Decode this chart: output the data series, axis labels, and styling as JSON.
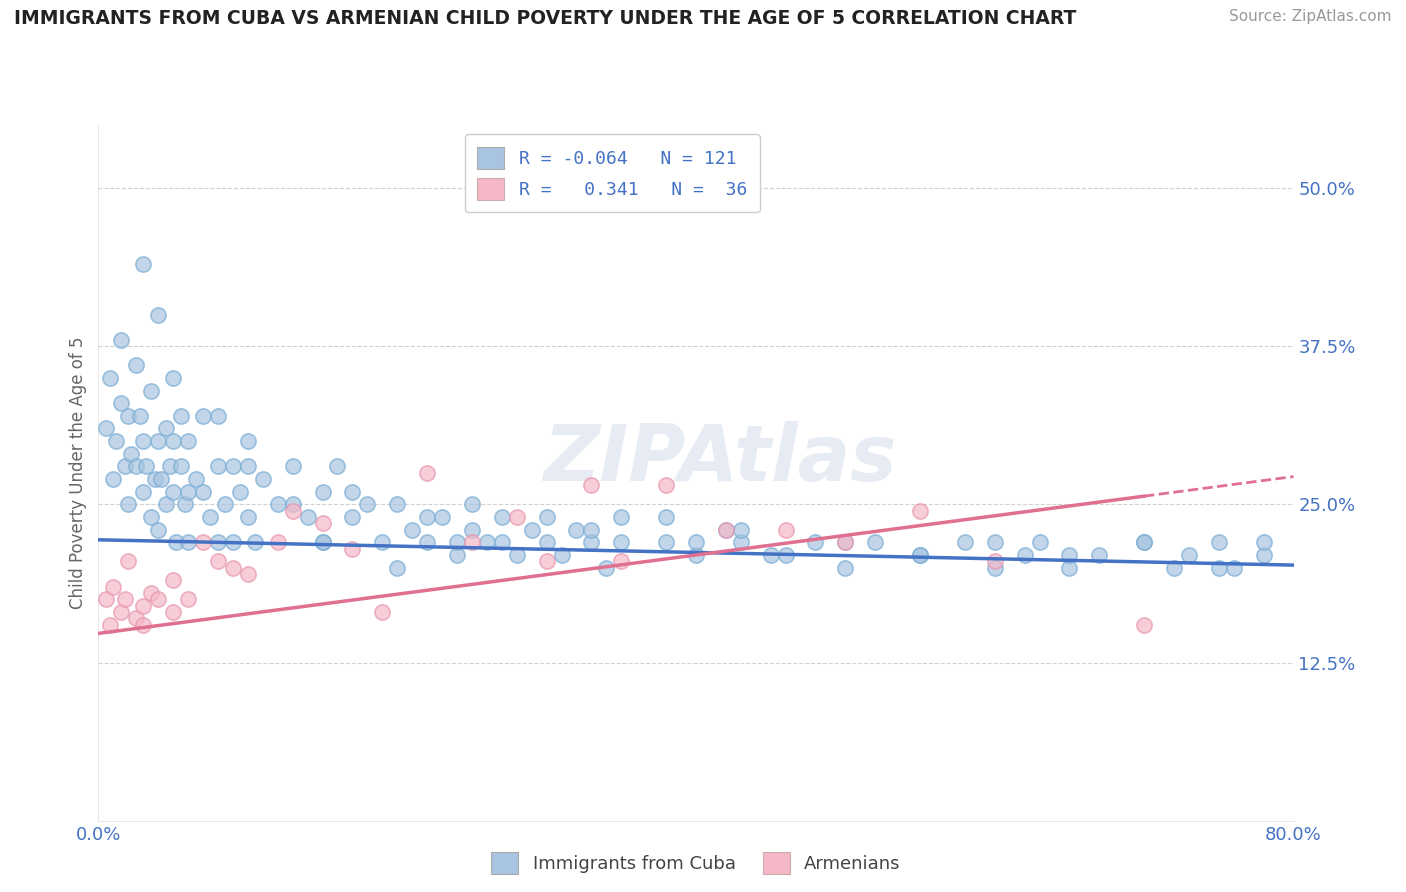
{
  "title": "IMMIGRANTS FROM CUBA VS ARMENIAN CHILD POVERTY UNDER THE AGE OF 5 CORRELATION CHART",
  "source": "Source: ZipAtlas.com",
  "ylabel": "Child Poverty Under the Age of 5",
  "xlim": [
    0.0,
    0.8
  ],
  "ylim": [
    0.0,
    0.55
  ],
  "xticks": [
    0.0,
    0.2,
    0.4,
    0.6,
    0.8
  ],
  "xticklabels_left": "0.0%",
  "xticklabels_right": "80.0%",
  "ytick_values": [
    0.125,
    0.25,
    0.375,
    0.5
  ],
  "ytick_labels": [
    "12.5%",
    "25.0%",
    "37.5%",
    "50.0%"
  ],
  "legend_labels": [
    "Immigrants from Cuba",
    "Armenians"
  ],
  "cuba_color": "#a8c4e0",
  "cuba_edge_color": "#7aadd4",
  "cuba_line_color": "#4472c4",
  "armenian_color": "#f4b8c8",
  "armenian_edge_color": "#e896b0",
  "armenian_line_color": "#e07090",
  "r_cuba": -0.064,
  "n_cuba": 121,
  "r_armenian": 0.341,
  "n_armenian": 36,
  "watermark": "ZIPAtlas",
  "background_color": "#ffffff",
  "grid_color": "#cccccc",
  "cuba_line_intercept": 0.222,
  "cuba_line_slope": -0.025,
  "armenian_line_intercept": 0.148,
  "armenian_line_slope": 0.155,
  "cuba_scatter_x": [
    0.005,
    0.008,
    0.01,
    0.012,
    0.015,
    0.015,
    0.018,
    0.02,
    0.02,
    0.022,
    0.025,
    0.025,
    0.028,
    0.03,
    0.03,
    0.032,
    0.035,
    0.035,
    0.038,
    0.04,
    0.04,
    0.042,
    0.045,
    0.045,
    0.048,
    0.05,
    0.05,
    0.052,
    0.055,
    0.055,
    0.058,
    0.06,
    0.06,
    0.065,
    0.07,
    0.07,
    0.075,
    0.08,
    0.08,
    0.085,
    0.09,
    0.09,
    0.095,
    0.1,
    0.1,
    0.105,
    0.11,
    0.12,
    0.13,
    0.14,
    0.15,
    0.15,
    0.16,
    0.17,
    0.18,
    0.19,
    0.2,
    0.21,
    0.22,
    0.23,
    0.24,
    0.25,
    0.26,
    0.27,
    0.28,
    0.29,
    0.3,
    0.31,
    0.32,
    0.33,
    0.34,
    0.35,
    0.38,
    0.4,
    0.42,
    0.43,
    0.45,
    0.48,
    0.5,
    0.52,
    0.55,
    0.58,
    0.6,
    0.62,
    0.63,
    0.65,
    0.67,
    0.7,
    0.72,
    0.73,
    0.75,
    0.76,
    0.78,
    0.03,
    0.04,
    0.05,
    0.06,
    0.08,
    0.1,
    0.13,
    0.15,
    0.17,
    0.2,
    0.22,
    0.24,
    0.25,
    0.27,
    0.3,
    0.33,
    0.35,
    0.38,
    0.4,
    0.43,
    0.46,
    0.5,
    0.55,
    0.6,
    0.65,
    0.7,
    0.75,
    0.78
  ],
  "cuba_scatter_y": [
    0.31,
    0.35,
    0.27,
    0.3,
    0.33,
    0.38,
    0.28,
    0.25,
    0.32,
    0.29,
    0.36,
    0.28,
    0.32,
    0.26,
    0.3,
    0.28,
    0.34,
    0.24,
    0.27,
    0.3,
    0.23,
    0.27,
    0.31,
    0.25,
    0.28,
    0.26,
    0.3,
    0.22,
    0.28,
    0.32,
    0.25,
    0.3,
    0.22,
    0.27,
    0.26,
    0.32,
    0.24,
    0.28,
    0.22,
    0.25,
    0.28,
    0.22,
    0.26,
    0.3,
    0.24,
    0.22,
    0.27,
    0.25,
    0.28,
    0.24,
    0.26,
    0.22,
    0.28,
    0.24,
    0.25,
    0.22,
    0.25,
    0.23,
    0.22,
    0.24,
    0.21,
    0.23,
    0.22,
    0.24,
    0.21,
    0.23,
    0.22,
    0.21,
    0.23,
    0.22,
    0.2,
    0.24,
    0.22,
    0.21,
    0.23,
    0.22,
    0.21,
    0.22,
    0.2,
    0.22,
    0.21,
    0.22,
    0.2,
    0.21,
    0.22,
    0.2,
    0.21,
    0.22,
    0.2,
    0.21,
    0.22,
    0.2,
    0.21,
    0.44,
    0.4,
    0.35,
    0.26,
    0.32,
    0.28,
    0.25,
    0.22,
    0.26,
    0.2,
    0.24,
    0.22,
    0.25,
    0.22,
    0.24,
    0.23,
    0.22,
    0.24,
    0.22,
    0.23,
    0.21,
    0.22,
    0.21,
    0.22,
    0.21,
    0.22,
    0.2,
    0.22
  ],
  "armenian_scatter_x": [
    0.005,
    0.008,
    0.01,
    0.015,
    0.018,
    0.02,
    0.025,
    0.03,
    0.03,
    0.035,
    0.04,
    0.05,
    0.05,
    0.06,
    0.07,
    0.08,
    0.09,
    0.1,
    0.12,
    0.13,
    0.15,
    0.17,
    0.19,
    0.22,
    0.25,
    0.28,
    0.3,
    0.33,
    0.35,
    0.38,
    0.42,
    0.46,
    0.5,
    0.55,
    0.6,
    0.7
  ],
  "armenian_scatter_y": [
    0.175,
    0.155,
    0.185,
    0.165,
    0.175,
    0.205,
    0.16,
    0.17,
    0.155,
    0.18,
    0.175,
    0.19,
    0.165,
    0.175,
    0.22,
    0.205,
    0.2,
    0.195,
    0.22,
    0.245,
    0.235,
    0.215,
    0.165,
    0.275,
    0.22,
    0.24,
    0.205,
    0.265,
    0.205,
    0.265,
    0.23,
    0.23,
    0.22,
    0.245,
    0.205,
    0.155
  ],
  "title_color": "#333333",
  "tick_color": "#4472c4",
  "legend_r_color": "#4472c4"
}
